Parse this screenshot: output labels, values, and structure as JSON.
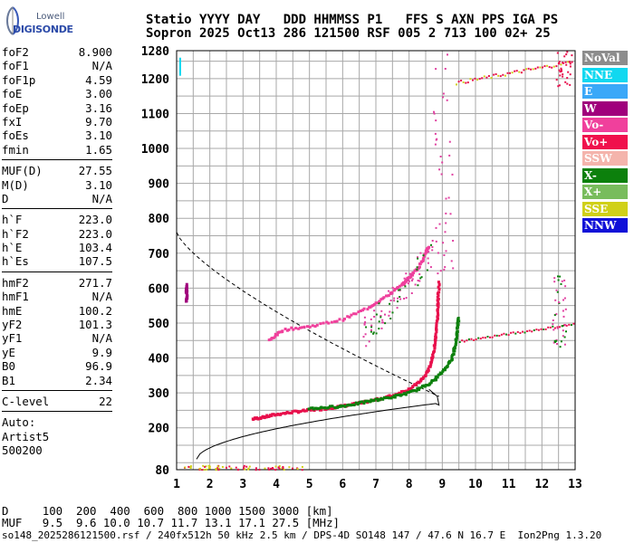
{
  "logo": {
    "top": "Lowell",
    "bottom": "DIGISONDE"
  },
  "header": {
    "line1": "Statio YYYY DAY   DDD HHMMSS P1   FFS S AXN PPS IGA PS",
    "line2": "Sopron 2025 Oct13 286 121500 RSF 005 2 713 100 02+ 25"
  },
  "params": {
    "group1": [
      {
        "k": "foF2",
        "v": "8.900"
      },
      {
        "k": "foF1",
        "v": "N/A"
      },
      {
        "k": "foF1p",
        "v": "4.59"
      },
      {
        "k": "foE",
        "v": "3.00"
      },
      {
        "k": "foEp",
        "v": "3.16"
      },
      {
        "k": "fxI",
        "v": "9.70"
      },
      {
        "k": "foEs",
        "v": "3.10"
      },
      {
        "k": "fmin",
        "v": "1.65"
      }
    ],
    "group2": [
      {
        "k": "MUF(D)",
        "v": "27.55"
      },
      {
        "k": "M(D)",
        "v": "3.10"
      },
      {
        "k": "D",
        "v": "N/A"
      }
    ],
    "group3": [
      {
        "k": "h`F",
        "v": "223.0"
      },
      {
        "k": "h`F2",
        "v": "223.0"
      },
      {
        "k": "h`E",
        "v": "103.4"
      },
      {
        "k": "h`Es",
        "v": "107.5"
      }
    ],
    "group4": [
      {
        "k": "hmF2",
        "v": "271.7"
      },
      {
        "k": "hmF1",
        "v": "N/A"
      },
      {
        "k": "hmE",
        "v": "100.2"
      },
      {
        "k": "yF2",
        "v": "101.3"
      },
      {
        "k": "yF1",
        "v": "N/A"
      },
      {
        "k": "yE",
        "v": "9.9"
      },
      {
        "k": "B0",
        "v": "96.9"
      },
      {
        "k": "B1",
        "v": "2.34"
      }
    ],
    "group5": [
      {
        "k": "C-level",
        "v": "22"
      }
    ],
    "footer": [
      "Auto:",
      "Artist5",
      "500200"
    ]
  },
  "legend": [
    {
      "label": "NoVal",
      "color": "#8c8c8c"
    },
    {
      "label": "NNE",
      "color": "#10d8f0"
    },
    {
      "label": "E",
      "color": "#3aa8f8"
    },
    {
      "label": "W",
      "color": "#a0007c"
    },
    {
      "label": "Vo-",
      "color": "#f0409c"
    },
    {
      "label": "Vo+",
      "color": "#f0104c"
    },
    {
      "label": "SSW",
      "color": "#f4b4ac"
    },
    {
      "label": "X-",
      "color": "#0c800c"
    },
    {
      "label": "X+",
      "color": "#78bc5c"
    },
    {
      "label": "SSE",
      "color": "#d0d018"
    },
    {
      "label": "NNW",
      "color": "#1010d8"
    }
  ],
  "bottom": {
    "line1": "D     100  200  400  600  800 1000 1500 3000 [km]",
    "line2": "MUF   9.5  9.6 10.0 10.7 11.7 13.1 17.1 27.5 [MHz]",
    "line3": "so148_2025286121500.rsf / 240fx512h 50 kHz 2.5 km / DPS-4D SO148 147 / 47.6 N 16.7 E  Ion2Png 1.3.20"
  },
  "chart_data": {
    "type": "scatter",
    "title": "",
    "xlabel": "",
    "ylabel": "",
    "xlim": [
      1,
      13
    ],
    "ylim": [
      80,
      1280
    ],
    "xticks": [
      1,
      2,
      3,
      4,
      5,
      6,
      7,
      8,
      9,
      10,
      11,
      12,
      13
    ],
    "yticks": [
      80,
      200,
      300,
      400,
      500,
      600,
      700,
      800,
      900,
      1000,
      1100,
      1200,
      1280
    ],
    "grid": true,
    "legend_position": "right",
    "series": [
      {
        "name": "Vo+",
        "color": "#e8104c",
        "points": [
          [
            3.3,
            225
          ],
          [
            3.6,
            230
          ],
          [
            4.0,
            238
          ],
          [
            4.5,
            245
          ],
          [
            5.0,
            250
          ],
          [
            5.5,
            255
          ],
          [
            6.0,
            262
          ],
          [
            6.5,
            270
          ],
          [
            7.0,
            280
          ],
          [
            7.5,
            292
          ],
          [
            8.0,
            310
          ],
          [
            8.3,
            330
          ],
          [
            8.5,
            350
          ],
          [
            8.65,
            380
          ],
          [
            8.75,
            420
          ],
          [
            8.82,
            470
          ],
          [
            8.86,
            520
          ],
          [
            8.88,
            570
          ],
          [
            8.9,
            620
          ]
        ]
      },
      {
        "name": "Vo-",
        "color": "#f0409c",
        "points": [
          [
            3.8,
            450
          ],
          [
            4.2,
            480
          ],
          [
            5.0,
            490
          ],
          [
            6.0,
            510
          ],
          [
            6.8,
            545
          ],
          [
            7.3,
            575
          ],
          [
            7.8,
            610
          ],
          [
            8.0,
            630
          ],
          [
            8.3,
            660
          ],
          [
            8.5,
            700
          ],
          [
            8.6,
            720
          ]
        ]
      },
      {
        "name": "X-",
        "color": "#0c800c",
        "points": [
          [
            5.0,
            255
          ],
          [
            5.5,
            258
          ],
          [
            6.0,
            262
          ],
          [
            6.5,
            270
          ],
          [
            7.0,
            280
          ],
          [
            7.5,
            288
          ],
          [
            8.0,
            300
          ],
          [
            8.5,
            320
          ],
          [
            8.8,
            340
          ],
          [
            9.1,
            370
          ],
          [
            9.3,
            400
          ],
          [
            9.4,
            440
          ],
          [
            9.45,
            480
          ],
          [
            9.5,
            520
          ]
        ]
      },
      {
        "name": "W",
        "color": "#a0007c",
        "points": [
          [
            1.3,
            560
          ],
          [
            1.3,
            590
          ],
          [
            1.3,
            610
          ]
        ]
      }
    ]
  }
}
